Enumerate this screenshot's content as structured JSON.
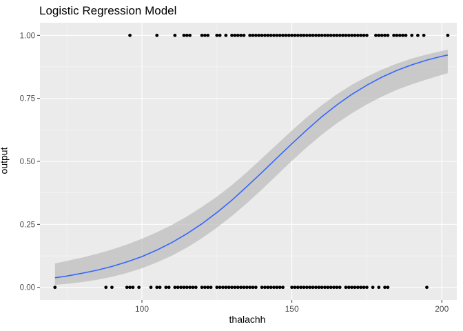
{
  "chart_data": {
    "type": "scatter",
    "title": "Logistic Regression Model",
    "xlabel": "thalachh",
    "ylabel": "output",
    "xlim": [
      66,
      205
    ],
    "ylim": [
      -0.05,
      1.05
    ],
    "x_ticks": [
      100,
      150,
      200
    ],
    "y_ticks": [
      0.0,
      0.25,
      0.5,
      0.75,
      1.0
    ],
    "x_tick_labels": [
      "100",
      "150",
      "200"
    ],
    "y_tick_labels": [
      "0.00",
      "0.25",
      "0.50",
      "0.75",
      "1.00"
    ],
    "grid": true,
    "series": [
      {
        "name": "points y=1",
        "y": 1,
        "x": [
          96,
          105,
          111,
          114,
          115,
          116,
          120,
          121,
          122,
          125,
          126,
          128,
          130,
          131,
          132,
          133,
          134,
          136,
          137,
          138,
          139,
          140,
          141,
          142,
          143,
          144,
          145,
          146,
          147,
          148,
          149,
          150,
          151,
          152,
          153,
          154,
          155,
          156,
          157,
          158,
          159,
          160,
          161,
          162,
          163,
          164,
          165,
          166,
          167,
          168,
          169,
          170,
          171,
          172,
          173,
          174,
          175,
          178,
          179,
          180,
          181,
          182,
          184,
          185,
          186,
          187,
          188,
          190,
          192,
          194,
          202
        ]
      },
      {
        "name": "points y=0",
        "y": 0,
        "x": [
          71,
          88,
          90,
          95,
          96,
          97,
          99,
          103,
          105,
          106,
          108,
          109,
          111,
          112,
          113,
          114,
          115,
          116,
          117,
          118,
          120,
          121,
          122,
          123,
          125,
          126,
          127,
          128,
          129,
          130,
          131,
          132,
          133,
          134,
          135,
          136,
          137,
          138,
          140,
          141,
          142,
          143,
          144,
          145,
          146,
          147,
          150,
          151,
          152,
          153,
          154,
          155,
          156,
          157,
          158,
          159,
          160,
          161,
          162,
          163,
          164,
          165,
          166,
          168,
          169,
          170,
          171,
          172,
          173,
          174,
          175,
          177,
          179,
          181,
          182,
          195
        ]
      },
      {
        "name": "logistic fit",
        "type": "line",
        "color": "#3366FF",
        "x": [
          71,
          75,
          80,
          85,
          90,
          95,
          100,
          105,
          110,
          115,
          120,
          125,
          130,
          135,
          140,
          145,
          150,
          155,
          160,
          165,
          170,
          175,
          180,
          185,
          190,
          195,
          200,
          202
        ],
        "y": [
          0.038,
          0.045,
          0.056,
          0.068,
          0.083,
          0.101,
          0.122,
          0.148,
          0.178,
          0.213,
          0.252,
          0.297,
          0.346,
          0.4,
          0.456,
          0.513,
          0.57,
          0.625,
          0.677,
          0.724,
          0.766,
          0.802,
          0.834,
          0.861,
          0.883,
          0.902,
          0.917,
          0.922
        ]
      },
      {
        "name": "confidence band",
        "type": "area",
        "color": "#BEBEBE",
        "x": [
          71,
          75,
          80,
          85,
          90,
          95,
          100,
          105,
          110,
          115,
          120,
          125,
          130,
          135,
          140,
          145,
          150,
          155,
          160,
          165,
          170,
          175,
          180,
          185,
          190,
          195,
          200,
          202
        ],
        "lower": [
          0.01,
          0.014,
          0.021,
          0.03,
          0.042,
          0.057,
          0.076,
          0.099,
          0.126,
          0.158,
          0.195,
          0.237,
          0.283,
          0.334,
          0.388,
          0.445,
          0.502,
          0.556,
          0.606,
          0.651,
          0.691,
          0.726,
          0.757,
          0.784,
          0.806,
          0.825,
          0.843,
          0.85
        ],
        "upper": [
          0.095,
          0.105,
          0.118,
          0.133,
          0.15,
          0.17,
          0.193,
          0.219,
          0.248,
          0.281,
          0.319,
          0.36,
          0.406,
          0.457,
          0.512,
          0.567,
          0.622,
          0.675,
          0.723,
          0.766,
          0.804,
          0.836,
          0.864,
          0.888,
          0.908,
          0.924,
          0.938,
          0.943
        ]
      }
    ]
  }
}
